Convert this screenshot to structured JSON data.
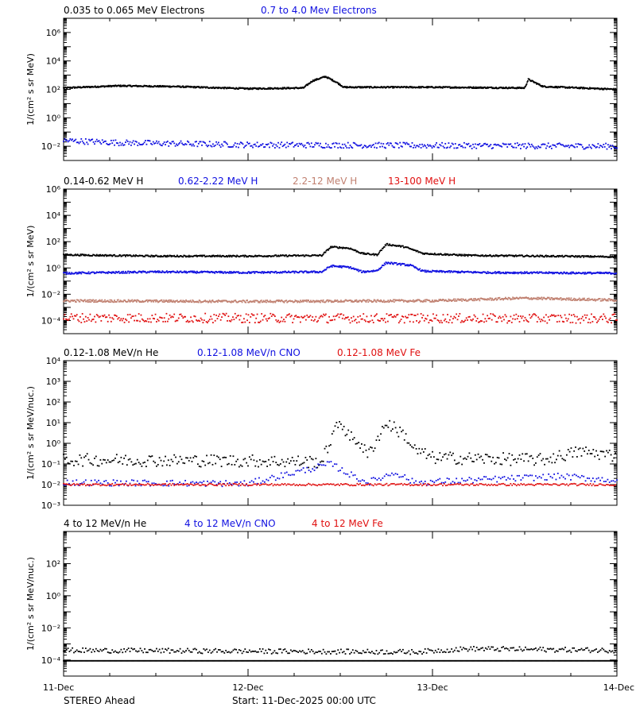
{
  "footer": {
    "left": "STEREO Ahead",
    "center": "Start: 11-Dec-2025 00:00 UTC"
  },
  "colors": {
    "black": "#000000",
    "blue": "#1010e0",
    "tan": "#c08070",
    "red": "#e01010"
  },
  "chart_data": [
    {
      "type": "scatter",
      "yscale": "log",
      "ylim_log10": [
        -3,
        7
      ],
      "xlim_days": [
        0,
        3
      ],
      "titles": [
        {
          "text": "0.035 to 0.065 MeV Electrons",
          "color": "black"
        },
        {
          "text": "0.7 to 4.0 Mev Electrons",
          "color": "blue"
        }
      ],
      "ylabel": "1/(cm² s sr MeV)",
      "y_ticks": [
        {
          "log": -2,
          "label": "10⁻²"
        },
        {
          "log": 0,
          "label": "10⁰"
        },
        {
          "log": 2,
          "label": "10²"
        },
        {
          "log": 4,
          "label": "10⁴"
        },
        {
          "log": 6,
          "label": "10⁶"
        }
      ],
      "series": [
        {
          "color": "black",
          "profile": [
            [
              0.0,
              2.1
            ],
            [
              0.3,
              2.25
            ],
            [
              0.6,
              2.2
            ],
            [
              1.0,
              2.05
            ],
            [
              1.3,
              2.1
            ],
            [
              1.35,
              2.6
            ],
            [
              1.42,
              2.9
            ],
            [
              1.48,
              2.5
            ],
            [
              1.52,
              2.15
            ],
            [
              2.0,
              2.15
            ],
            [
              2.5,
              2.1
            ],
            [
              2.52,
              2.7
            ],
            [
              2.6,
              2.2
            ],
            [
              3.0,
              2.0
            ]
          ],
          "noise": 0.05,
          "step": 0.003
        },
        {
          "color": "blue",
          "profile": [
            [
              0.0,
              -1.6
            ],
            [
              0.3,
              -1.75
            ],
            [
              1.0,
              -1.9
            ],
            [
              2.0,
              -1.95
            ],
            [
              3.0,
              -2.0
            ]
          ],
          "noise": 0.2,
          "step": 0.006
        }
      ]
    },
    {
      "type": "scatter",
      "yscale": "log",
      "ylim_log10": [
        -5,
        6
      ],
      "xlim_days": [
        0,
        3
      ],
      "titles": [
        {
          "text": "0.14-0.62 MeV H",
          "color": "black"
        },
        {
          "text": "0.62-2.22 MeV H",
          "color": "blue"
        },
        {
          "text": "2.2-12 MeV H",
          "color": "tan"
        },
        {
          "text": "13-100 MeV H",
          "color": "red"
        }
      ],
      "ylabel": "1/(cm² s sr MeV)",
      "y_ticks": [
        {
          "log": -4,
          "label": "10⁻⁴"
        },
        {
          "log": -2,
          "label": "10⁻²"
        },
        {
          "log": 0,
          "label": "10⁰"
        },
        {
          "log": 2,
          "label": "10²"
        },
        {
          "log": 4,
          "label": "10⁴"
        },
        {
          "log": 6,
          "label": "10⁶"
        }
      ],
      "series": [
        {
          "color": "black",
          "profile": [
            [
              0.0,
              1.0
            ],
            [
              0.5,
              0.9
            ],
            [
              1.0,
              0.9
            ],
            [
              1.4,
              0.95
            ],
            [
              1.45,
              1.6
            ],
            [
              1.55,
              1.5
            ],
            [
              1.62,
              1.1
            ],
            [
              1.7,
              1.0
            ],
            [
              1.75,
              1.8
            ],
            [
              1.85,
              1.6
            ],
            [
              1.95,
              1.1
            ],
            [
              2.2,
              0.95
            ],
            [
              3.0,
              0.85
            ]
          ],
          "noise": 0.06,
          "step": 0.004
        },
        {
          "color": "blue",
          "profile": [
            [
              0.0,
              -0.4
            ],
            [
              0.5,
              -0.3
            ],
            [
              1.0,
              -0.35
            ],
            [
              1.4,
              -0.3
            ],
            [
              1.45,
              0.15
            ],
            [
              1.55,
              0.05
            ],
            [
              1.62,
              -0.3
            ],
            [
              1.7,
              -0.2
            ],
            [
              1.75,
              0.4
            ],
            [
              1.88,
              0.2
            ],
            [
              1.95,
              -0.25
            ],
            [
              2.3,
              -0.35
            ],
            [
              3.0,
              -0.4
            ]
          ],
          "noise": 0.07,
          "step": 0.004
        },
        {
          "color": "tan",
          "profile": [
            [
              0.0,
              -2.5
            ],
            [
              1.0,
              -2.55
            ],
            [
              2.0,
              -2.5
            ],
            [
              2.5,
              -2.3
            ],
            [
              3.0,
              -2.45
            ]
          ],
          "noise": 0.09,
          "step": 0.004
        },
        {
          "color": "red",
          "profile": [
            [
              0.0,
              -3.8
            ],
            [
              3.0,
              -3.85
            ]
          ],
          "noise": 0.35,
          "step": 0.006
        }
      ]
    },
    {
      "type": "scatter",
      "yscale": "log",
      "ylim_log10": [
        -3,
        4
      ],
      "xlim_days": [
        0,
        3
      ],
      "titles": [
        {
          "text": "0.12-1.08 MeV/n He",
          "color": "black"
        },
        {
          "text": "0.12-1.08 MeV/n CNO",
          "color": "blue"
        },
        {
          "text": "0.12-1.08 MeV Fe",
          "color": "red"
        }
      ],
      "ylabel": "1/(cm² s sr MeV/nuc.)",
      "y_ticks": [
        {
          "log": -3,
          "label": "10⁻³"
        },
        {
          "log": -2,
          "label": "10⁻²"
        },
        {
          "log": -1,
          "label": "10⁻¹"
        },
        {
          "log": 0,
          "label": "10⁰"
        },
        {
          "log": 1,
          "label": "10¹"
        },
        {
          "log": 2,
          "label": "10²"
        },
        {
          "log": 3,
          "label": "10³"
        },
        {
          "log": 4,
          "label": "10⁴"
        }
      ],
      "series": [
        {
          "color": "black",
          "profile": [
            [
              0.0,
              -0.8
            ],
            [
              1.0,
              -0.85
            ],
            [
              1.4,
              -0.9
            ],
            [
              1.45,
              0.2
            ],
            [
              1.5,
              1.1
            ],
            [
              1.55,
              0.3
            ],
            [
              1.6,
              0.1
            ],
            [
              1.65,
              -0.6
            ],
            [
              1.75,
              1.0
            ],
            [
              1.85,
              0.4
            ],
            [
              1.9,
              -0.3
            ],
            [
              2.0,
              -0.7
            ],
            [
              2.6,
              -0.8
            ],
            [
              2.8,
              -0.4
            ],
            [
              3.0,
              -0.6
            ]
          ],
          "noise": 0.3,
          "step": 0.008
        },
        {
          "color": "blue",
          "profile": [
            [
              0.0,
              -1.9
            ],
            [
              1.0,
              -1.95
            ],
            [
              1.45,
              -1.0
            ],
            [
              1.55,
              -1.5
            ],
            [
              1.65,
              -1.9
            ],
            [
              1.8,
              -1.4
            ],
            [
              1.9,
              -1.9
            ],
            [
              2.7,
              -1.6
            ],
            [
              3.0,
              -1.8
            ]
          ],
          "noise": 0.15,
          "step": 0.01
        },
        {
          "color": "red",
          "profile": [
            [
              0.0,
              -2.0
            ],
            [
              3.0,
              -2.0
            ]
          ],
          "noise": 0.05,
          "step": 0.008
        }
      ]
    },
    {
      "type": "scatter",
      "yscale": "log",
      "ylim_log10": [
        -5,
        4
      ],
      "xlim_days": [
        0,
        3
      ],
      "titles": [
        {
          "text": "4 to 12 MeV/n He",
          "color": "black"
        },
        {
          "text": "4 to 12 MeV/n CNO",
          "color": "blue"
        },
        {
          "text": "4 to 12 MeV Fe",
          "color": "red"
        }
      ],
      "ylabel": "1/(cm² s sr MeV/nuc.)",
      "y_ticks": [
        {
          "log": -4,
          "label": "10⁻⁴"
        },
        {
          "log": -2,
          "label": "10⁻²"
        },
        {
          "log": 0,
          "label": "10⁰"
        },
        {
          "log": 2,
          "label": "10²"
        }
      ],
      "series": [
        {
          "color": "black",
          "profile": [
            [
              0.0,
              -3.4
            ],
            [
              1.9,
              -3.5
            ],
            [
              2.2,
              -3.3
            ],
            [
              3.0,
              -3.4
            ]
          ],
          "noise": 0.15,
          "step": 0.008
        },
        {
          "color": "black",
          "profile": [
            [
              0.0,
              -4.05
            ],
            [
              3.0,
              -4.05
            ]
          ],
          "noise": 0.0,
          "step": 0.005
        }
      ]
    }
  ],
  "x_axis": {
    "ticks": [
      {
        "day": 0,
        "label": "11-Dec"
      },
      {
        "day": 1,
        "label": "12-Dec"
      },
      {
        "day": 2,
        "label": "13-Dec"
      },
      {
        "day": 3,
        "label": "14-Dec"
      }
    ],
    "minor_per_day": 4
  }
}
